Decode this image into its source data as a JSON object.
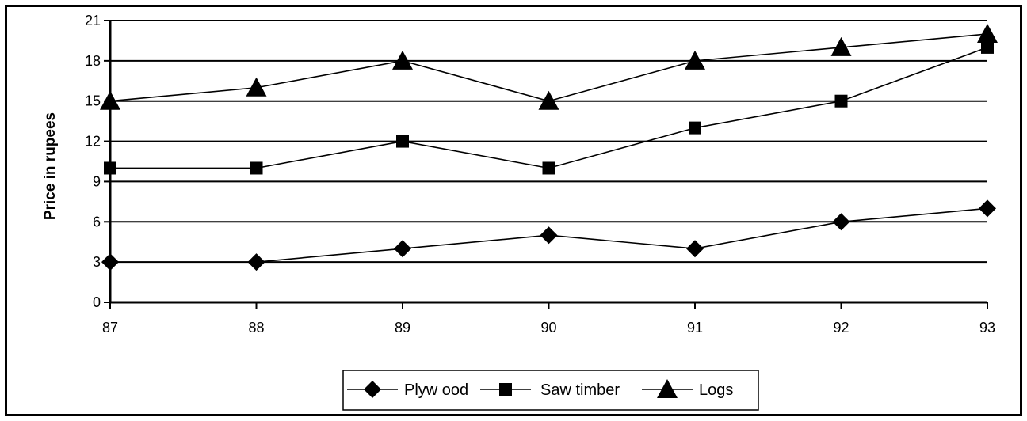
{
  "chart_data": {
    "type": "line",
    "title": "",
    "xlabel": "",
    "ylabel": "Price in rupees",
    "categories": [
      "87",
      "88",
      "89",
      "90",
      "91",
      "92",
      "93"
    ],
    "ylim": [
      0,
      21
    ],
    "yticks": [
      0,
      3,
      6,
      9,
      12,
      15,
      18,
      21
    ],
    "grid": "horizontal",
    "legend_position": "bottom",
    "series": [
      {
        "name": "Plyw ood",
        "marker": "diamond",
        "values": [
          3,
          3,
          4,
          5,
          4,
          6,
          7
        ]
      },
      {
        "name": "Saw  timber",
        "marker": "square",
        "values": [
          10,
          10,
          12,
          10,
          13,
          15,
          19
        ]
      },
      {
        "name": "Logs",
        "marker": "triangle",
        "values": [
          15,
          16,
          18,
          15,
          18,
          19,
          20
        ]
      }
    ],
    "colors": {
      "line": "#000000",
      "grid": "#000000",
      "background": "#ffffff"
    }
  }
}
